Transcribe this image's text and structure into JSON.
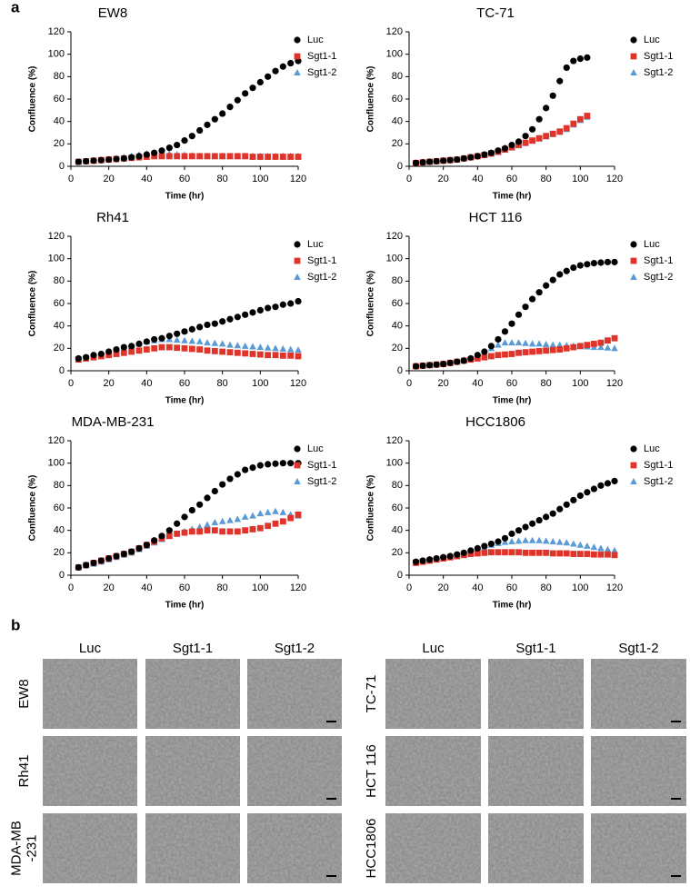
{
  "panel_labels": [
    "a",
    "b"
  ],
  "chart_data": [
    {
      "type": "scatter",
      "title": "EW8",
      "x_label": "Time (hr)",
      "y_label": "Confluence (%)",
      "x": [
        4,
        8,
        12,
        16,
        20,
        24,
        28,
        32,
        36,
        40,
        44,
        48,
        52,
        56,
        60,
        64,
        68,
        72,
        76,
        80,
        84,
        88,
        92,
        96,
        100,
        104,
        108,
        112,
        116,
        120
      ],
      "xlim": [
        0,
        120
      ],
      "xticks": [
        0,
        20,
        40,
        60,
        80,
        100,
        120
      ],
      "ylim": [
        0,
        120
      ],
      "yticks": [
        0,
        20,
        40,
        60,
        80,
        100,
        120
      ],
      "series": [
        {
          "name": "Luc",
          "color": "#000000",
          "marker": "circle",
          "values": [
            4,
            4.5,
            5,
            5.5,
            6,
            6.5,
            7,
            8,
            9,
            10.5,
            12,
            14,
            16.5,
            19,
            23,
            27,
            32,
            37,
            42,
            47,
            53,
            59,
            65,
            70,
            75,
            80,
            85,
            89,
            92,
            94
          ]
        },
        {
          "name": "Sgt1-1",
          "color": "#e0332a",
          "marker": "square",
          "values": [
            4,
            4.5,
            5,
            5.5,
            6,
            6.5,
            7,
            7.5,
            8,
            8.5,
            9,
            9,
            9,
            9,
            9,
            9,
            9,
            9,
            9,
            9,
            9,
            9,
            9,
            8.5,
            8.5,
            8.5,
            8.5,
            8.5,
            8.5,
            8.5
          ]
        },
        {
          "name": "Sgt1-2",
          "color": "#5b9bd5",
          "marker": "triangle",
          "values": [
            4,
            4.5,
            5,
            5.5,
            6,
            7,
            8,
            9,
            10,
            11,
            11,
            11,
            11,
            10.5,
            10,
            9.5,
            9,
            9,
            9,
            9,
            9,
            9,
            9,
            9,
            9,
            9,
            9,
            9,
            9,
            9
          ]
        }
      ]
    },
    {
      "type": "scatter",
      "title": "TC-71",
      "x_label": "Time (hr)",
      "y_label": "Confluence (%)",
      "x": [
        4,
        8,
        12,
        16,
        20,
        24,
        28,
        32,
        36,
        40,
        44,
        48,
        52,
        56,
        60,
        64,
        68,
        72,
        76,
        80,
        84,
        88,
        92,
        96,
        100,
        104,
        108,
        112,
        116,
        120
      ],
      "xlim": [
        0,
        120
      ],
      "xticks": [
        0,
        20,
        40,
        60,
        80,
        100,
        120
      ],
      "ylim": [
        0,
        120
      ],
      "yticks": [
        0,
        20,
        40,
        60,
        80,
        100,
        120
      ],
      "series": [
        {
          "name": "Luc",
          "color": "#000000",
          "marker": "circle",
          "values": [
            3,
            3.5,
            4,
            4.5,
            5,
            5.5,
            6,
            7,
            8,
            9,
            10.5,
            12,
            14,
            16,
            19,
            22,
            27,
            33,
            42,
            52,
            63,
            76,
            88,
            94,
            96,
            97,
            null,
            null,
            null,
            null
          ]
        },
        {
          "name": "Sgt1-1",
          "color": "#e0332a",
          "marker": "square",
          "values": [
            3,
            3.5,
            4,
            4.5,
            5,
            5.5,
            6,
            7,
            8,
            9,
            10,
            11.5,
            13,
            15,
            17,
            19,
            21,
            23,
            25,
            27,
            29,
            31,
            34,
            38,
            42,
            45,
            null,
            null,
            null,
            null
          ]
        },
        {
          "name": "Sgt1-2",
          "color": "#5b9bd5",
          "marker": "triangle",
          "values": [
            3,
            3.5,
            4,
            4.5,
            5,
            5.5,
            6,
            7,
            8,
            9,
            10,
            11,
            12.5,
            14.5,
            16.5,
            18.5,
            20.5,
            22.5,
            24.5,
            26.5,
            28.5,
            30.5,
            33,
            37,
            41,
            44,
            null,
            null,
            null,
            null
          ]
        }
      ]
    },
    {
      "type": "scatter",
      "title": "Rh41",
      "x_label": "Time (hr)",
      "y_label": "Confluence (%)",
      "x": [
        4,
        8,
        12,
        16,
        20,
        24,
        28,
        32,
        36,
        40,
        44,
        48,
        52,
        56,
        60,
        64,
        68,
        72,
        76,
        80,
        84,
        88,
        92,
        96,
        100,
        104,
        108,
        112,
        116,
        120
      ],
      "xlim": [
        0,
        120
      ],
      "xticks": [
        0,
        20,
        40,
        60,
        80,
        100,
        120
      ],
      "ylim": [
        0,
        120
      ],
      "yticks": [
        0,
        20,
        40,
        60,
        80,
        100,
        120
      ],
      "series": [
        {
          "name": "Luc",
          "color": "#000000",
          "marker": "circle",
          "values": [
            11,
            12,
            14,
            15,
            17,
            19,
            21,
            22,
            24,
            26,
            28,
            29,
            31,
            33,
            35,
            37,
            39,
            41,
            42,
            44,
            46,
            48,
            50,
            52,
            54,
            56,
            57,
            59,
            60,
            62
          ]
        },
        {
          "name": "Sgt1-1",
          "color": "#e0332a",
          "marker": "square",
          "values": [
            10,
            11,
            12,
            13,
            14,
            15,
            16,
            17,
            18,
            19,
            20,
            21,
            21,
            20.5,
            20,
            19.5,
            19,
            18,
            17.5,
            17,
            16.5,
            16,
            15.5,
            15,
            14.5,
            14,
            14,
            13.5,
            13.5,
            13
          ]
        },
        {
          "name": "Sgt1-2",
          "color": "#5b9bd5",
          "marker": "triangle",
          "values": [
            10,
            11,
            12.5,
            14,
            16,
            18,
            20,
            22,
            24,
            26,
            27,
            28,
            28,
            27.5,
            27,
            26.5,
            26,
            25,
            24.5,
            24,
            23,
            22.5,
            22,
            21.5,
            21,
            20.5,
            20,
            19.5,
            19,
            18.5
          ]
        }
      ]
    },
    {
      "type": "scatter",
      "title": "HCT 116",
      "x_label": "Time (hr)",
      "y_label": "Confluence (%)",
      "x": [
        4,
        8,
        12,
        16,
        20,
        24,
        28,
        32,
        36,
        40,
        44,
        48,
        52,
        56,
        60,
        64,
        68,
        72,
        76,
        80,
        84,
        88,
        92,
        96,
        100,
        104,
        108,
        112,
        116,
        120
      ],
      "xlim": [
        0,
        120
      ],
      "xticks": [
        0,
        20,
        40,
        60,
        80,
        100,
        120
      ],
      "ylim": [
        0,
        120
      ],
      "yticks": [
        0,
        20,
        40,
        60,
        80,
        100,
        120
      ],
      "series": [
        {
          "name": "Luc",
          "color": "#000000",
          "marker": "circle",
          "values": [
            4,
            4.5,
            5,
            5.5,
            6,
            7,
            8,
            9,
            11,
            14,
            17,
            22,
            28,
            35,
            42,
            50,
            57,
            64,
            70,
            76,
            81,
            86,
            89,
            92,
            94,
            95,
            96,
            96.5,
            97,
            97
          ]
        },
        {
          "name": "Sgt1-1",
          "color": "#e0332a",
          "marker": "square",
          "values": [
            4,
            4.5,
            5,
            5.5,
            6,
            7,
            8,
            9,
            10,
            11,
            12,
            13,
            14,
            14.5,
            15,
            16,
            16.5,
            17,
            17.5,
            18,
            18.5,
            19,
            20,
            21,
            22,
            23,
            24,
            25,
            27,
            29
          ]
        },
        {
          "name": "Sgt1-2",
          "color": "#5b9bd5",
          "marker": "triangle",
          "values": [
            4,
            4.5,
            5,
            5.5,
            6,
            7,
            8,
            9.5,
            11,
            13,
            16,
            20,
            23,
            25,
            25,
            25,
            24.5,
            24,
            24,
            23.5,
            23,
            23,
            22.5,
            22,
            22,
            21.5,
            21,
            21,
            20.5,
            20
          ]
        }
      ]
    },
    {
      "type": "scatter",
      "title": "MDA-MB-231",
      "x_label": "Time (hr)",
      "y_label": "Confluence (%)",
      "x": [
        4,
        8,
        12,
        16,
        20,
        24,
        28,
        32,
        36,
        40,
        44,
        48,
        52,
        56,
        60,
        64,
        68,
        72,
        76,
        80,
        84,
        88,
        92,
        96,
        100,
        104,
        108,
        112,
        116,
        120
      ],
      "xlim": [
        0,
        120
      ],
      "xticks": [
        0,
        20,
        40,
        60,
        80,
        100,
        120
      ],
      "ylim": [
        0,
        120
      ],
      "yticks": [
        0,
        20,
        40,
        60,
        80,
        100,
        120
      ],
      "series": [
        {
          "name": "Luc",
          "color": "#000000",
          "marker": "circle",
          "values": [
            7,
            9,
            11,
            13,
            15,
            17,
            19,
            21,
            24,
            27,
            31,
            35,
            40,
            46,
            52,
            58,
            63,
            69,
            75,
            81,
            86,
            90,
            94,
            96,
            98,
            99,
            99.5,
            100,
            100,
            100
          ]
        },
        {
          "name": "Sgt1-1",
          "color": "#e0332a",
          "marker": "square",
          "values": [
            7,
            9,
            11,
            13,
            15,
            17,
            19,
            21,
            24,
            27,
            30,
            33,
            35,
            37,
            38,
            39,
            39,
            40,
            40,
            39,
            39,
            39,
            40,
            41,
            42,
            44,
            46,
            48,
            51,
            54
          ]
        },
        {
          "name": "Sgt1-2",
          "color": "#5b9bd5",
          "marker": "triangle",
          "values": [
            7,
            8.5,
            10,
            12,
            14,
            16,
            18,
            20,
            23,
            26,
            29,
            32,
            35,
            37,
            39,
            41,
            43,
            45,
            47,
            48,
            49,
            50,
            52,
            53,
            55,
            56,
            57,
            56,
            54,
            53
          ]
        }
      ]
    },
    {
      "type": "scatter",
      "title": "HCC1806",
      "x_label": "Time (hr)",
      "y_label": "Confluence (%)",
      "x": [
        4,
        8,
        12,
        16,
        20,
        24,
        28,
        32,
        36,
        40,
        44,
        48,
        52,
        56,
        60,
        64,
        68,
        72,
        76,
        80,
        84,
        88,
        92,
        96,
        100,
        104,
        108,
        112,
        116,
        120
      ],
      "xlim": [
        0,
        120
      ],
      "xticks": [
        0,
        20,
        40,
        60,
        80,
        100,
        120
      ],
      "ylim": [
        0,
        120
      ],
      "yticks": [
        0,
        20,
        40,
        60,
        80,
        100,
        120
      ],
      "series": [
        {
          "name": "Luc",
          "color": "#000000",
          "marker": "circle",
          "values": [
            12,
            13,
            14,
            15,
            16,
            17,
            18.5,
            20,
            22,
            24,
            26,
            28,
            30,
            33,
            37,
            40,
            43,
            46,
            49,
            52,
            55,
            59,
            63,
            67,
            71,
            74,
            77,
            80,
            82,
            84
          ]
        },
        {
          "name": "Sgt1-1",
          "color": "#e0332a",
          "marker": "square",
          "values": [
            11,
            12,
            13,
            14,
            15,
            16,
            17,
            18,
            19,
            19.5,
            20,
            20.5,
            20.5,
            20.5,
            20.5,
            20.5,
            20,
            20,
            20,
            20,
            19.5,
            19.5,
            19.5,
            19,
            19,
            19,
            18.5,
            18.5,
            18.5,
            18
          ]
        },
        {
          "name": "Sgt1-2",
          "color": "#5b9bd5",
          "marker": "triangle",
          "values": [
            11,
            12,
            13,
            14,
            15,
            16,
            17.5,
            19,
            21,
            23,
            25,
            27,
            28.5,
            29.5,
            30,
            30.5,
            31,
            31,
            31,
            30.5,
            30,
            29.5,
            29,
            28,
            27,
            26,
            25,
            24,
            23,
            22
          ]
        }
      ]
    }
  ],
  "panel_b": {
    "groups": [
      {
        "columns": [
          "Luc",
          "Sgt1-1",
          "Sgt1-2"
        ],
        "rows": [
          [
            "EW8"
          ],
          [
            "Rh41"
          ],
          [
            "MDA-MB",
            "-231"
          ]
        ]
      },
      {
        "columns": [
          "Luc",
          "Sgt1-1",
          "Sgt1-2"
        ],
        "rows": [
          [
            "TC-71"
          ],
          [
            "HCT 116"
          ],
          [
            "HCC1806"
          ]
        ]
      }
    ]
  }
}
